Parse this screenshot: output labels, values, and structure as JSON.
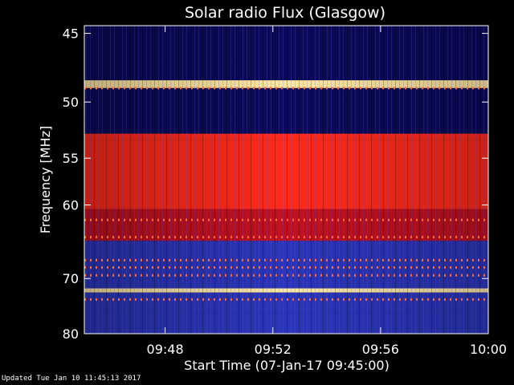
{
  "chart_data": {
    "type": "heatmap",
    "title": "Solar radio Flux (Glasgow)",
    "xlabel": "Start Time (07-Jan-17 09:45:00)",
    "ylabel": "Frequency [MHz]",
    "x_ticks": [
      "09:48",
      "09:52",
      "09:56",
      "10:00"
    ],
    "x_tick_minutes": [
      3,
      7,
      11,
      15
    ],
    "xlim_minutes": [
      0,
      15
    ],
    "y_ticks": [
      45,
      50,
      55,
      60,
      70,
      80
    ],
    "y_tick_labels": [
      "45",
      "50",
      "55",
      "60",
      "70",
      "80"
    ],
    "ylim": [
      44.5,
      80
    ],
    "y_scale": "reciprocal",
    "colors": {
      "low": "#0a0a5a",
      "mid_low": "#2b35b8",
      "mid": "#c01020",
      "high": "#ff2a1a",
      "peak": "#ffe8a0"
    },
    "bands": [
      {
        "from": 44.5,
        "to": 47.0,
        "level": 0.15
      },
      {
        "from": 47.0,
        "to": 48.3,
        "level": 0.2
      },
      {
        "from": 48.3,
        "to": 48.9,
        "level": 0.98
      },
      {
        "from": 48.9,
        "to": 51.2,
        "level": 0.25
      },
      {
        "from": 51.2,
        "to": 52.7,
        "level": 0.18
      },
      {
        "from": 52.7,
        "to": 53.3,
        "level": 0.85
      },
      {
        "from": 53.3,
        "to": 60.5,
        "level": 0.72
      },
      {
        "from": 60.5,
        "to": 64.5,
        "level": 0.55
      },
      {
        "from": 64.5,
        "to": 70.0,
        "level": 0.4
      },
      {
        "from": 70.0,
        "to": 71.6,
        "level": 0.42
      },
      {
        "from": 71.6,
        "to": 72.3,
        "level": 0.95
      },
      {
        "from": 72.3,
        "to": 76.0,
        "level": 0.45
      },
      {
        "from": 76.0,
        "to": 80.0,
        "level": 0.38
      }
    ],
    "dotted_lines_mhz": [
      48.9,
      61.8,
      64.0,
      67.2,
      68.3,
      69.5,
      73.5
    ]
  },
  "footer": "Updated Tue Jan 10 11:45:13 2017"
}
